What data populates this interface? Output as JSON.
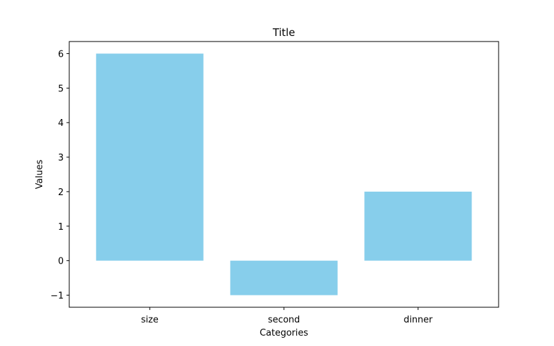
{
  "chart_data": {
    "type": "bar",
    "title": "Title",
    "xlabel": "Categories",
    "ylabel": "Values",
    "categories": [
      "size",
      "second",
      "dinner"
    ],
    "values": [
      6,
      -1,
      2
    ],
    "ylim": [
      -1.35,
      6.35
    ],
    "yticks": [
      -1,
      0,
      1,
      2,
      3,
      4,
      5,
      6
    ],
    "ytick_labels": [
      "−1",
      "0",
      "1",
      "2",
      "3",
      "4",
      "5",
      "6"
    ],
    "bar_color": "#87CEEB",
    "grid": false,
    "legend": "none"
  }
}
